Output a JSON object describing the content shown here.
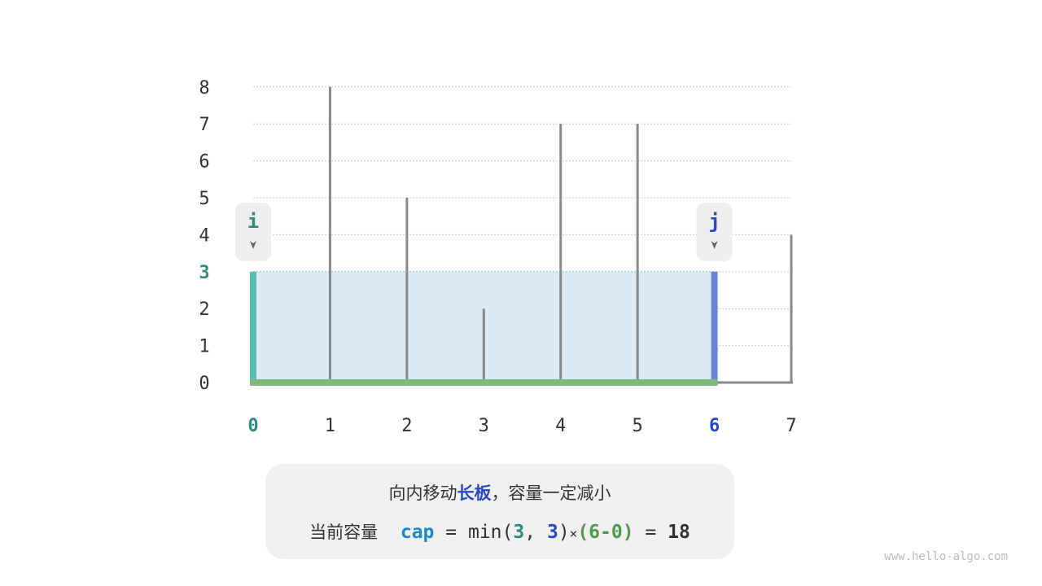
{
  "chart_data": {
    "type": "bar",
    "categories": [
      "0",
      "1",
      "2",
      "3",
      "4",
      "5",
      "6",
      "7"
    ],
    "values": [
      3,
      8,
      5,
      2,
      7,
      7,
      3,
      4
    ],
    "yticks": [
      "0",
      "1",
      "2",
      "3",
      "4",
      "5",
      "6",
      "7",
      "8"
    ],
    "ylim": [
      0,
      8
    ],
    "grid": true,
    "pointer_i": {
      "label": "i",
      "index": 0,
      "color": "#2e8b7f"
    },
    "pointer_j": {
      "label": "j",
      "index": 6,
      "color": "#2b47c9"
    },
    "water_level": 3,
    "colors": {
      "bar": "#888888",
      "left_wall": "#55bdb2",
      "right_wall": "#6a82d8",
      "floor": "#80b97c",
      "water": "#dbeaf7"
    }
  },
  "caption": {
    "line1_pre": "向内移动",
    "line1_em": "长板",
    "line1_post": "，容量一定减小",
    "line2_label": "当前容量",
    "line2_var": "cap",
    "eq": "=",
    "min": "min(",
    "a": "3",
    "comma": ",",
    "b": "3",
    "close": ")",
    "times": "×",
    "width_expr": "(6-0)",
    "eq2": "=",
    "result": "18"
  },
  "watermark": "www.hello-algo.com"
}
